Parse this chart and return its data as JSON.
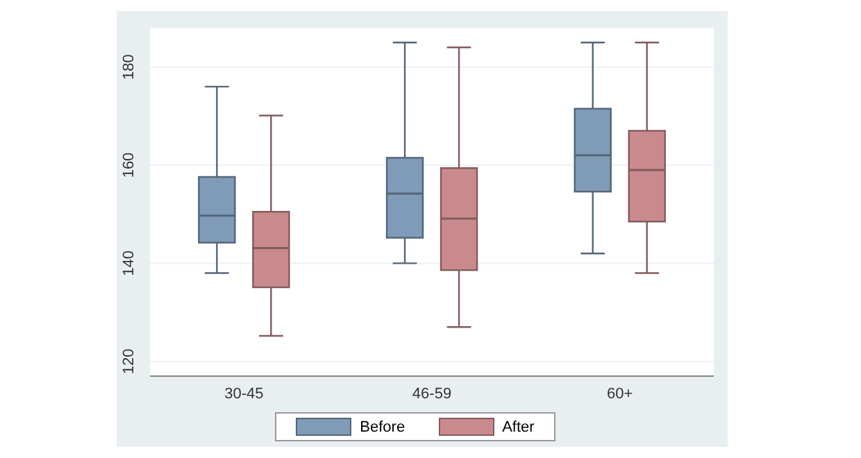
{
  "chart_data": {
    "type": "box",
    "categories": [
      "30-45",
      "46-59",
      "60+"
    ],
    "series": [
      {
        "name": "Before",
        "color": "#7f9bb8",
        "boxes": [
          {
            "low": 138,
            "q1": 144.2,
            "median": 149.7,
            "q3": 157.6,
            "high": 176
          },
          {
            "low": 140,
            "q1": 145.2,
            "median": 154.2,
            "q3": 161.5,
            "high": 185
          },
          {
            "low": 142,
            "q1": 154.6,
            "median": 162,
            "q3": 171.5,
            "high": 185
          }
        ]
      },
      {
        "name": "After",
        "color": "#c98a8e",
        "boxes": [
          {
            "low": 125.2,
            "q1": 135.1,
            "median": 143.1,
            "q3": 150.5,
            "high": 170.1
          },
          {
            "low": 127,
            "q1": 138.6,
            "median": 149.1,
            "q3": 159.4,
            "high": 184
          },
          {
            "low": 138,
            "q1": 148.5,
            "median": 159,
            "q3": 167,
            "high": 185
          }
        ]
      }
    ],
    "ylim": [
      117,
      188
    ],
    "yticks": [
      120,
      140,
      160,
      180
    ],
    "grid": "y",
    "legend": "bottom"
  }
}
